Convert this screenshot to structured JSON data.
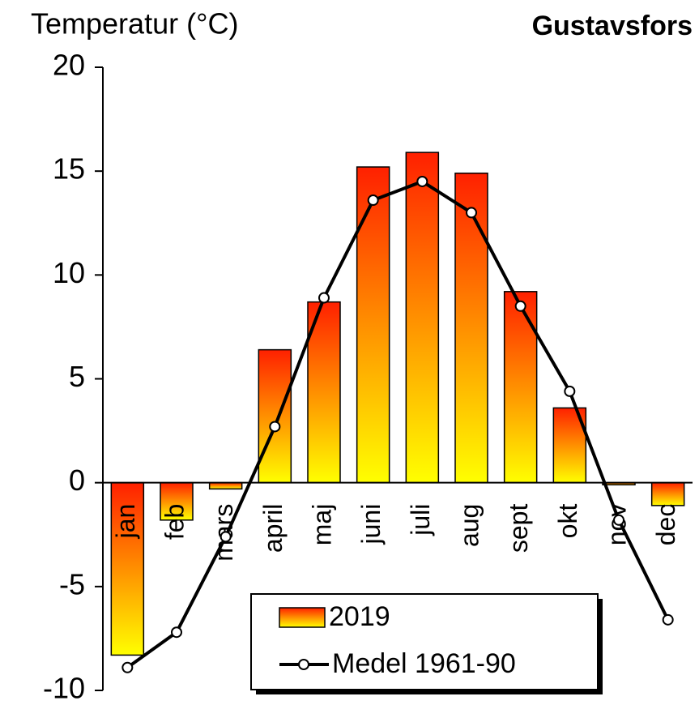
{
  "chart_data": {
    "type": "bar_line",
    "title": "Gustavsfors",
    "y_label": "Temperatur  (°C)",
    "categories": [
      "jan",
      "feb",
      "mars",
      "april",
      "maj",
      "juni",
      "juli",
      "aug",
      "sept",
      "okt",
      "nov",
      "dec"
    ],
    "series": [
      {
        "name": "2019",
        "type": "bar",
        "gradient": [
          "#ff2000",
          "#ffff00"
        ],
        "values": [
          -8.3,
          -1.8,
          -0.3,
          6.4,
          8.7,
          15.2,
          15.9,
          14.9,
          9.2,
          3.6,
          -0.1,
          -1.1
        ]
      },
      {
        "name": "Medel 1961-90",
        "type": "line",
        "color": "#000000",
        "values": [
          -8.9,
          -7.2,
          -2.6,
          2.7,
          8.9,
          13.6,
          14.5,
          13.0,
          8.5,
          4.4,
          -1.8,
          -6.6
        ]
      }
    ],
    "ylim": [
      -10,
      20
    ],
    "yticks": [
      -10,
      -5,
      0,
      5,
      10,
      15,
      20
    ]
  }
}
